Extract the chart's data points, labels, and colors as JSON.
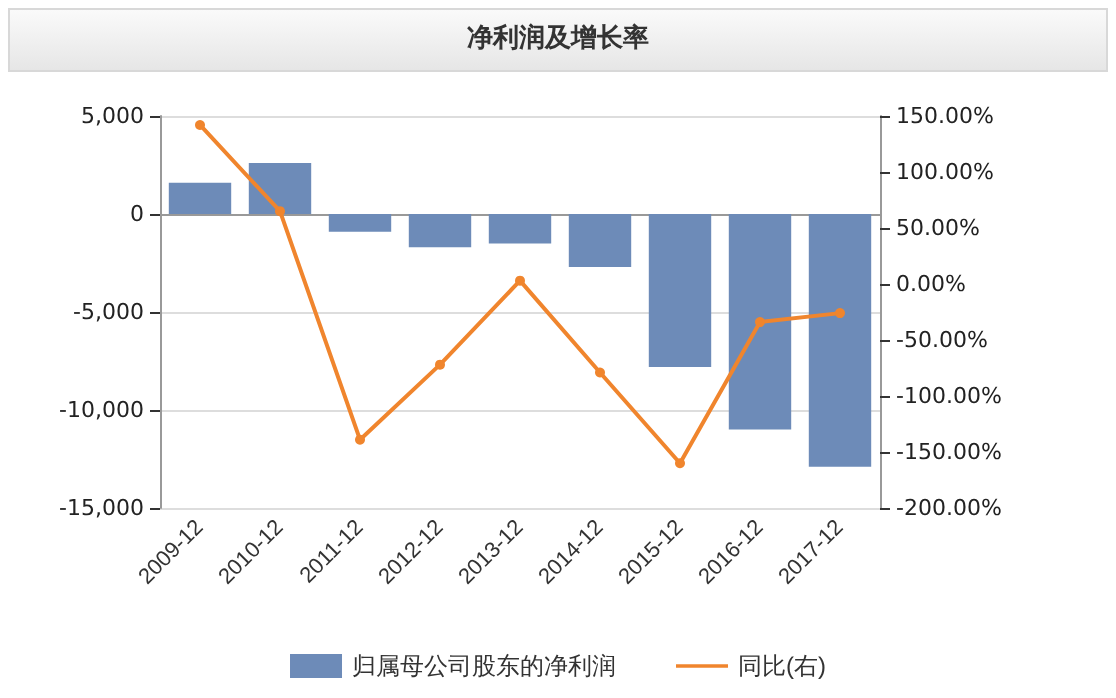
{
  "chart_data": {
    "type": "bar",
    "title": "净利润及增长率",
    "categories": [
      "2009-12",
      "2010-12",
      "2011-12",
      "2012-12",
      "2013-12",
      "2014-12",
      "2015-12",
      "2016-12",
      "2017-12"
    ],
    "series": [
      {
        "name": "归属母公司股东的净利润",
        "color": "#6d8bb8",
        "values": [
          1600,
          2600,
          -900,
          -1700,
          -1500,
          -2700,
          -7800,
          -11000,
          -12900
        ]
      },
      {
        "name": "同比(右)",
        "type": "line",
        "axis": "y2",
        "color": "#f0852d",
        "values": [
          142,
          65,
          -139,
          -72,
          3,
          -79,
          -160,
          -34,
          -26
        ]
      }
    ],
    "ylim": [
      -15000,
      5000
    ],
    "yticks": [
      {
        "value": -15000,
        "label": "-15,000"
      },
      {
        "value": -10000,
        "label": "-10,000"
      },
      {
        "value": -5000,
        "label": "-5,000"
      },
      0,
      {
        "value": 5000,
        "label": "5,000"
      }
    ],
    "y2lim": [
      -200,
      150
    ],
    "y2ticks": [
      {
        "value": -200,
        "label": "-200.00%"
      },
      {
        "value": -150,
        "label": "-150.00%"
      },
      {
        "value": -100,
        "label": "-100.00%"
      },
      {
        "value": -50,
        "label": "-50.00%"
      },
      {
        "value": 0,
        "label": "0.00%"
      },
      {
        "value": 50,
        "label": "50.00%"
      },
      {
        "value": 100,
        "label": "100.00%"
      },
      {
        "value": 150,
        "label": "150.00%"
      }
    ],
    "grid": "y",
    "legend": "bottom",
    "marker": "circle",
    "line_style": "solid"
  }
}
